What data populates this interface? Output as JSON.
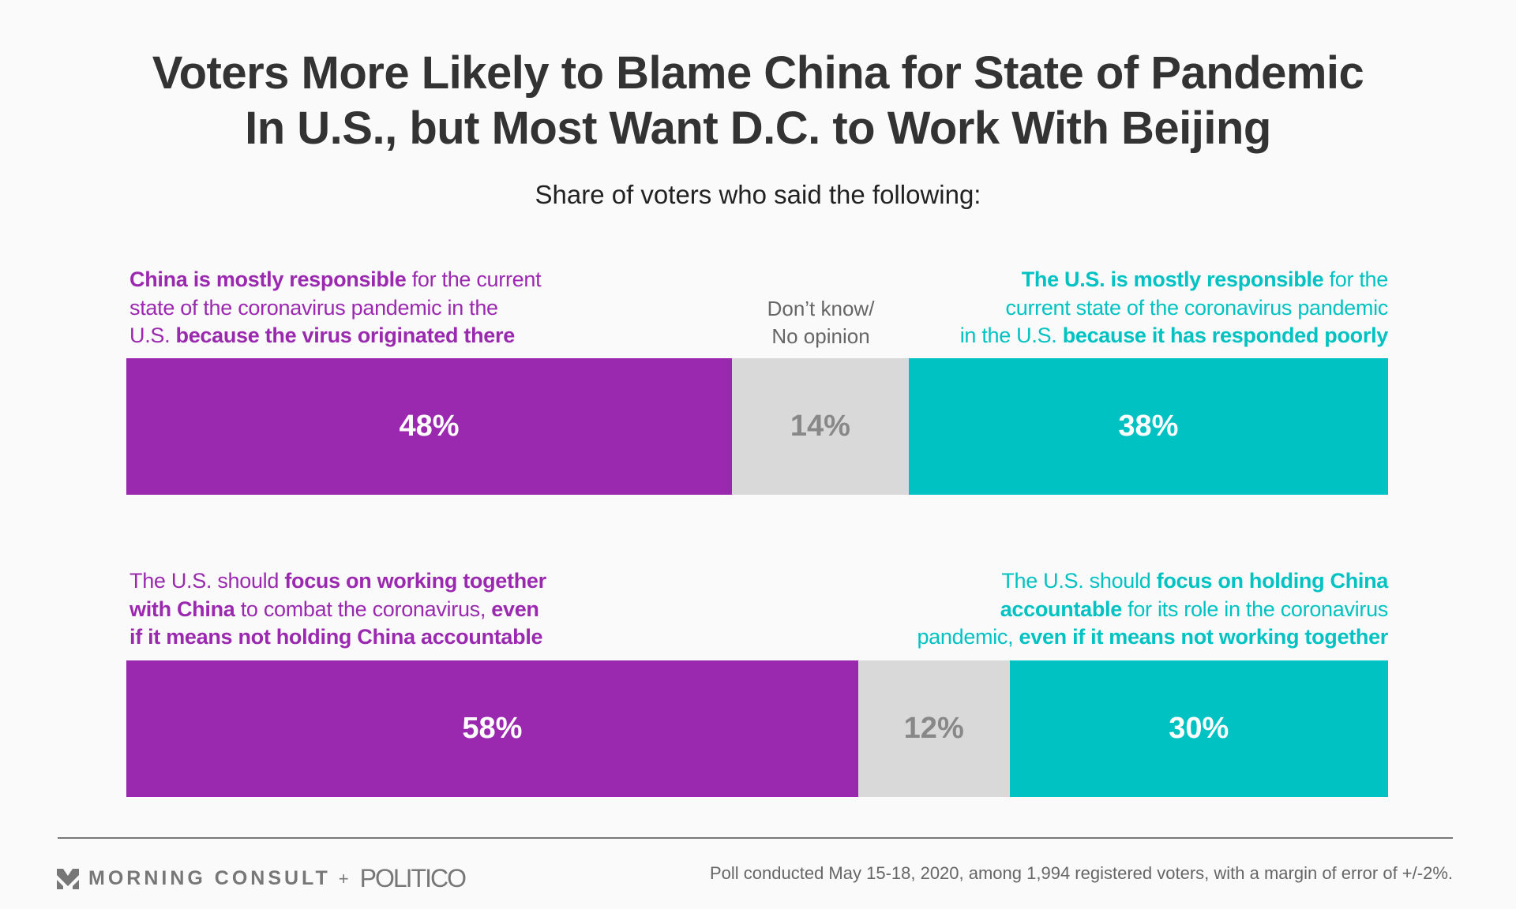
{
  "title_lines": [
    "Voters More Likely to Blame China for State of Pandemic",
    "In U.S., but Most Want D.C. to Work With Beijing"
  ],
  "subtitle": "Share of voters who said the following:",
  "colors": {
    "purple": "#9b29b0",
    "gray": "#d9d9d9",
    "teal": "#00c2c2",
    "gray_text": "#888888",
    "white_text": "#ffffff"
  },
  "middle_label": [
    "Don’t know/",
    "No opinion"
  ],
  "chart_data": {
    "type": "bar",
    "stacked": true,
    "orientation": "horizontal",
    "xlim": [
      0,
      100
    ],
    "rows": [
      {
        "left_label": [
          [
            {
              "t": "China is mostly responsible",
              "b": true
            },
            {
              "t": " for the current",
              "b": false
            }
          ],
          [
            {
              "t": "state of the coronavirus pandemic in the",
              "b": false
            }
          ],
          [
            {
              "t": "U.S. ",
              "b": false
            },
            {
              "t": "because the virus originated there",
              "b": true
            }
          ]
        ],
        "right_label": [
          [
            {
              "t": "The U.S. is mostly responsible",
              "b": true
            },
            {
              "t": " for the",
              "b": false
            }
          ],
          [
            {
              "t": "current state of the coronavirus pandemic",
              "b": false
            }
          ],
          [
            {
              "t": "in the U.S. ",
              "b": false
            },
            {
              "t": "because it has responded poorly",
              "b": true
            }
          ]
        ],
        "values": [
          48,
          14,
          38
        ],
        "value_labels": [
          "48%",
          "14%",
          "38%"
        ]
      },
      {
        "left_label": [
          [
            {
              "t": "The U.S. should ",
              "b": false
            },
            {
              "t": "focus on working together",
              "b": true
            }
          ],
          [
            {
              "t": "with China",
              "b": true
            },
            {
              "t": " to combat the coronavirus, ",
              "b": false
            },
            {
              "t": "even",
              "b": true
            }
          ],
          [
            {
              "t": "if it means not holding China accountable",
              "b": true
            }
          ]
        ],
        "right_label": [
          [
            {
              "t": "The U.S. should ",
              "b": false
            },
            {
              "t": "focus on holding China",
              "b": true
            }
          ],
          [
            {
              "t": "accountable",
              "b": true
            },
            {
              "t": " for its role in the coronavirus",
              "b": false
            }
          ],
          [
            {
              "t": "pandemic, ",
              "b": false
            },
            {
              "t": "even if it means not working together",
              "b": true
            }
          ]
        ],
        "values": [
          58,
          12,
          30
        ],
        "value_labels": [
          "58%",
          "12%",
          "30%"
        ]
      }
    ]
  },
  "footer": {
    "brand": "MORNING CONSULT",
    "plus": "+",
    "partner": "POLITICO",
    "note": "Poll conducted May 15-18, 2020, among 1,994 registered voters, with a margin of error of +/-2%."
  }
}
